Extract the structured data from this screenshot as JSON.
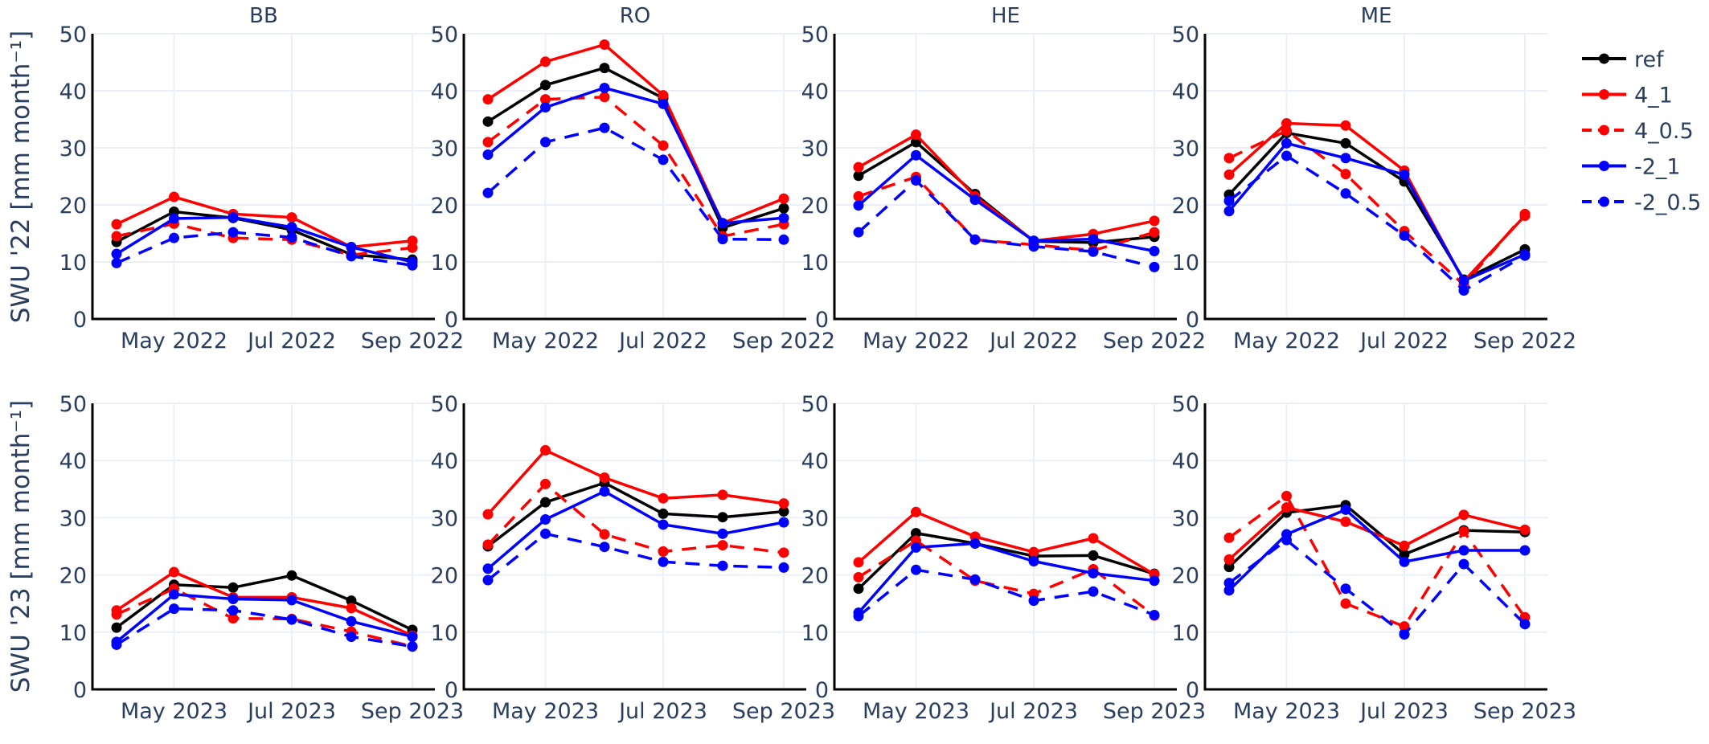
{
  "chart_data": {
    "type": "line",
    "title": "",
    "months_index": [
      "Apr",
      "May",
      "Jun",
      "Jul",
      "Aug",
      "Sep"
    ],
    "ylim": [
      0,
      50
    ],
    "yticks": [
      0,
      10,
      20,
      30,
      40,
      50
    ],
    "grid": true,
    "legend_position": "top-right",
    "legend": [
      {
        "name": "ref",
        "color": "#000000",
        "dash": "solid"
      },
      {
        "name": "4_1",
        "color": "#ff0000",
        "dash": "solid"
      },
      {
        "name": "4_0.5",
        "color": "#ff0000",
        "dash": "dash"
      },
      {
        "name": "-2_1",
        "color": "#0000ff",
        "dash": "solid"
      },
      {
        "name": "-2_0.5",
        "color": "#0000ff",
        "dash": "dash"
      }
    ],
    "rows": [
      {
        "ylabel": "SWU '22 [mm month⁻¹]",
        "year": 2022,
        "xticks": [
          "May 2022",
          "Jul 2022",
          "Sep 2022"
        ],
        "x": [
          "2022-04",
          "2022-05",
          "2022-06",
          "2022-07",
          "2022-08",
          "2022-09"
        ]
      },
      {
        "ylabel": "SWU '23 [mm month⁻¹]",
        "year": 2023,
        "xticks": [
          "May 2023",
          "Jul 2023",
          "Sep 2023"
        ],
        "x": [
          "2023-04",
          "2023-05",
          "2023-06",
          "2023-07",
          "2023-08",
          "2023-09"
        ]
      }
    ],
    "columns": [
      "BB",
      "RO",
      "HE",
      "ME"
    ],
    "panels": [
      {
        "row": 0,
        "col": 0,
        "title": "BB",
        "series": [
          {
            "name": "ref",
            "values": [
              13.5,
              18.8,
              17.7,
              15.6,
              11.3,
              10.4
            ]
          },
          {
            "name": "4_1",
            "values": [
              16.6,
              21.4,
              18.4,
              17.8,
              12.6,
              13.7
            ]
          },
          {
            "name": "4_0.5",
            "values": [
              14.5,
              16.7,
              14.2,
              13.9,
              11.2,
              12.5
            ]
          },
          {
            "name": "-2_1",
            "values": [
              11.4,
              17.6,
              17.8,
              16.1,
              12.6,
              10.0
            ]
          },
          {
            "name": "-2_0.5",
            "values": [
              9.8,
              14.2,
              15.2,
              14.3,
              11.0,
              9.4
            ]
          }
        ]
      },
      {
        "row": 0,
        "col": 1,
        "title": "RO",
        "series": [
          {
            "name": "ref",
            "values": [
              34.6,
              41.0,
              44.0,
              38.7,
              16.0,
              19.4
            ]
          },
          {
            "name": "4_1",
            "values": [
              38.5,
              45.1,
              48.1,
              39.2,
              16.8,
              21.1
            ]
          },
          {
            "name": "4_0.5",
            "values": [
              31.0,
              38.5,
              38.9,
              30.4,
              14.5,
              16.6
            ]
          },
          {
            "name": "-2_1",
            "values": [
              28.8,
              37.1,
              40.5,
              37.7,
              16.8,
              17.7
            ]
          },
          {
            "name": "-2_0.5",
            "values": [
              22.1,
              31.0,
              33.5,
              27.9,
              14.0,
              13.9
            ]
          }
        ]
      },
      {
        "row": 0,
        "col": 2,
        "title": "HE",
        "series": [
          {
            "name": "ref",
            "values": [
              25.1,
              31.0,
              21.9,
              13.6,
              13.4,
              14.4
            ]
          },
          {
            "name": "4_1",
            "values": [
              26.6,
              32.3,
              21.5,
              13.7,
              14.9,
              17.2
            ]
          },
          {
            "name": "4_0.5",
            "values": [
              21.5,
              24.9,
              13.9,
              13.0,
              12.0,
              15.2
            ]
          },
          {
            "name": "-2_1",
            "values": [
              19.9,
              28.7,
              20.9,
              13.7,
              14.0,
              11.9
            ]
          },
          {
            "name": "-2_0.5",
            "values": [
              15.2,
              24.3,
              13.9,
              12.7,
              11.8,
              9.1
            ]
          }
        ]
      },
      {
        "row": 0,
        "col": 3,
        "title": "ME",
        "series": [
          {
            "name": "ref",
            "values": [
              21.8,
              32.6,
              30.8,
              24.1,
              6.9,
              12.2
            ]
          },
          {
            "name": "4_1",
            "values": [
              25.3,
              34.3,
              33.9,
              26.0,
              6.6,
              18.1
            ]
          },
          {
            "name": "4_0.5",
            "values": [
              28.2,
              33.0,
              25.4,
              15.4,
              6.0,
              18.4
            ]
          },
          {
            "name": "-2_1",
            "values": [
              18.9,
              30.8,
              28.2,
              25.3,
              6.7,
              11.3
            ]
          },
          {
            "name": "-2_0.5",
            "values": [
              20.7,
              28.6,
              22.0,
              14.6,
              5.0,
              11.1
            ]
          }
        ]
      },
      {
        "row": 1,
        "col": 0,
        "title": "",
        "series": [
          {
            "name": "ref",
            "values": [
              10.8,
              18.3,
              17.8,
              19.9,
              15.5,
              10.4
            ]
          },
          {
            "name": "4_1",
            "values": [
              13.8,
              20.5,
              16.1,
              16.1,
              14.2,
              9.4
            ]
          },
          {
            "name": "4_0.5",
            "values": [
              13.1,
              17.6,
              12.4,
              12.3,
              10.1,
              7.5
            ]
          },
          {
            "name": "-2_1",
            "values": [
              8.3,
              16.6,
              15.8,
              15.6,
              11.9,
              9.2
            ]
          },
          {
            "name": "-2_0.5",
            "values": [
              7.8,
              14.1,
              13.8,
              12.2,
              9.2,
              7.5
            ]
          }
        ]
      },
      {
        "row": 1,
        "col": 1,
        "title": "",
        "series": [
          {
            "name": "ref",
            "values": [
              25.0,
              32.7,
              36.1,
              30.7,
              30.1,
              31.1
            ]
          },
          {
            "name": "4_1",
            "values": [
              30.6,
              41.8,
              37.0,
              33.4,
              34.0,
              32.5
            ]
          },
          {
            "name": "4_0.5",
            "values": [
              25.3,
              35.9,
              27.1,
              24.1,
              25.2,
              23.9
            ]
          },
          {
            "name": "-2_1",
            "values": [
              21.1,
              29.7,
              34.6,
              28.8,
              27.2,
              29.2
            ]
          },
          {
            "name": "-2_0.5",
            "values": [
              19.1,
              27.2,
              24.9,
              22.3,
              21.6,
              21.3
            ]
          }
        ]
      },
      {
        "row": 1,
        "col": 2,
        "title": "",
        "series": [
          {
            "name": "ref",
            "values": [
              17.6,
              27.3,
              25.5,
              23.3,
              23.4,
              20.2
            ]
          },
          {
            "name": "4_1",
            "values": [
              22.2,
              31.0,
              26.7,
              24.0,
              26.4,
              20.1
            ]
          },
          {
            "name": "4_0.5",
            "values": [
              19.6,
              26.0,
              19.0,
              16.7,
              21.0,
              12.9
            ]
          },
          {
            "name": "-2_1",
            "values": [
              13.4,
              24.8,
              25.5,
              22.4,
              20.3,
              19.0
            ]
          },
          {
            "name": "-2_0.5",
            "values": [
              12.8,
              20.9,
              19.2,
              15.5,
              17.1,
              13.0
            ]
          }
        ]
      },
      {
        "row": 1,
        "col": 3,
        "title": "",
        "series": [
          {
            "name": "ref",
            "values": [
              21.4,
              30.9,
              32.2,
              23.6,
              27.8,
              27.5
            ]
          },
          {
            "name": "4_1",
            "values": [
              22.7,
              31.8,
              29.3,
              25.1,
              30.5,
              27.9
            ]
          },
          {
            "name": "4_0.5",
            "values": [
              26.5,
              33.8,
              15.0,
              11.0,
              27.6,
              12.6
            ]
          },
          {
            "name": "-2_1",
            "values": [
              17.3,
              27.1,
              31.4,
              22.3,
              24.3,
              24.3
            ]
          },
          {
            "name": "-2_0.5",
            "values": [
              18.6,
              26.1,
              17.6,
              9.6,
              21.9,
              11.4
            ]
          }
        ]
      }
    ]
  }
}
